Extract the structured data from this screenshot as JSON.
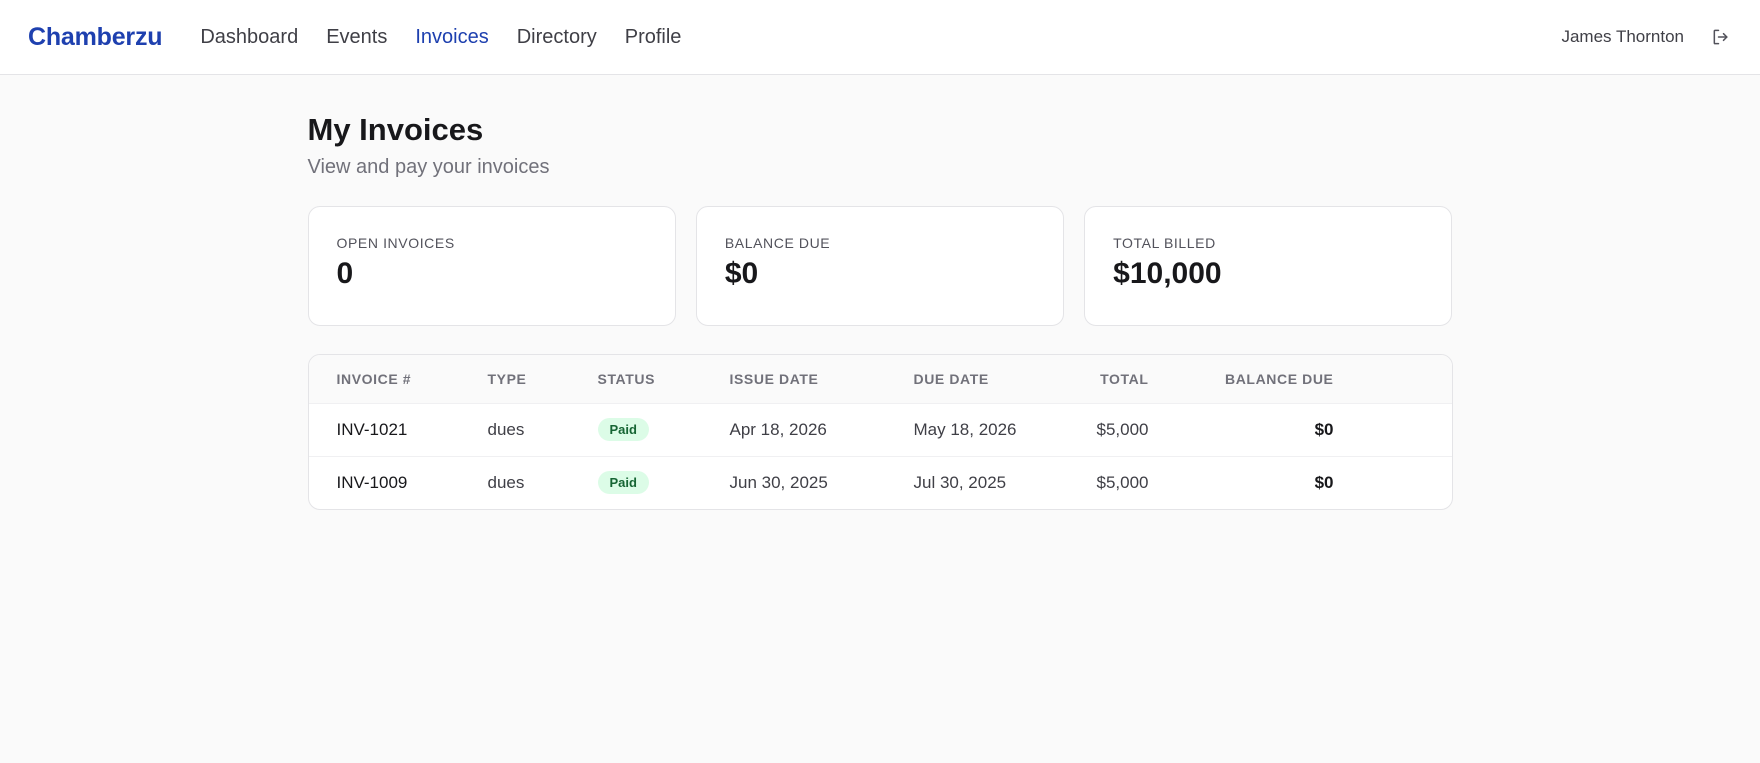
{
  "brand": "Chamberzu",
  "nav": [
    {
      "label": "Dashboard",
      "active": false
    },
    {
      "label": "Events",
      "active": false
    },
    {
      "label": "Invoices",
      "active": true
    },
    {
      "label": "Directory",
      "active": false
    },
    {
      "label": "Profile",
      "active": false
    }
  ],
  "user": {
    "name": "James Thornton",
    "logout_icon": "logout-icon"
  },
  "page": {
    "title": "My Invoices",
    "subtitle": "View and pay your invoices"
  },
  "cards": [
    {
      "label": "OPEN INVOICES",
      "value": "0"
    },
    {
      "label": "BALANCE DUE",
      "value": "$0"
    },
    {
      "label": "TOTAL BILLED",
      "value": "$10,000"
    }
  ],
  "table": {
    "headers": {
      "invoice": "INVOICE #",
      "type": "TYPE",
      "status": "STATUS",
      "issue_date": "ISSUE DATE",
      "due_date": "DUE DATE",
      "total": "TOTAL",
      "balance_due": "BALANCE DUE"
    },
    "rows": [
      {
        "invoice": "INV-1021",
        "type": "dues",
        "status": "Paid",
        "issue_date": "Apr 18, 2026",
        "due_date": "May 18, 2026",
        "total": "$5,000",
        "balance_due": "$0"
      },
      {
        "invoice": "INV-1009",
        "type": "dues",
        "status": "Paid",
        "issue_date": "Jun 30, 2025",
        "due_date": "Jul 30, 2025",
        "total": "$5,000",
        "balance_due": "$0"
      }
    ]
  },
  "colors": {
    "brand": "#1e40af",
    "paid_badge_bg": "#dcfce7",
    "paid_badge_text": "#166534"
  }
}
